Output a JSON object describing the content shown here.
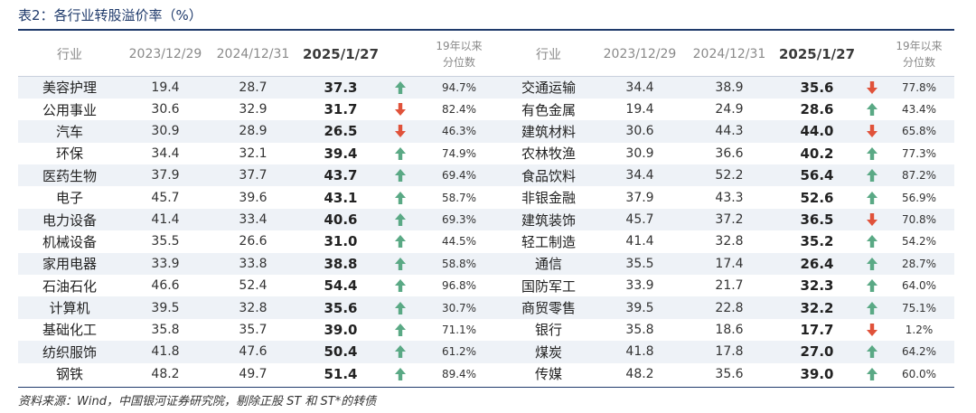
{
  "title": "表2：各行业转股溢价率（%）",
  "headers": {
    "industry": "行业",
    "d1": "2023/12/29",
    "d2": "2024/12/31",
    "d3": "2025/1/27",
    "pct_line1": "19年以来",
    "pct_line2": "分位数"
  },
  "colors": {
    "up": "#5aa985",
    "down": "#e0523a",
    "stripe": "#eef2f7",
    "rule": "#1f3a6b"
  },
  "rows": [
    {
      "left": {
        "name": "美容护理",
        "v1": "19.4",
        "v2": "28.7",
        "v3": "37.3",
        "dir": "up",
        "pct": "94.7%"
      },
      "right": {
        "name": "交通运输",
        "v1": "34.4",
        "v2": "38.9",
        "v3": "35.6",
        "dir": "down",
        "pct": "77.8%"
      }
    },
    {
      "left": {
        "name": "公用事业",
        "v1": "30.6",
        "v2": "32.9",
        "v3": "31.7",
        "dir": "down",
        "pct": "82.4%"
      },
      "right": {
        "name": "有色金属",
        "v1": "19.4",
        "v2": "24.9",
        "v3": "28.6",
        "dir": "up",
        "pct": "43.4%"
      }
    },
    {
      "left": {
        "name": "汽车",
        "v1": "30.9",
        "v2": "28.9",
        "v3": "26.5",
        "dir": "down",
        "pct": "46.3%"
      },
      "right": {
        "name": "建筑材料",
        "v1": "30.6",
        "v2": "44.3",
        "v3": "44.0",
        "dir": "down",
        "pct": "65.8%"
      }
    },
    {
      "left": {
        "name": "环保",
        "v1": "34.4",
        "v2": "32.1",
        "v3": "39.4",
        "dir": "up",
        "pct": "74.9%"
      },
      "right": {
        "name": "农林牧渔",
        "v1": "30.9",
        "v2": "36.6",
        "v3": "40.2",
        "dir": "up",
        "pct": "77.3%"
      }
    },
    {
      "left": {
        "name": "医药生物",
        "v1": "37.9",
        "v2": "37.7",
        "v3": "43.7",
        "dir": "up",
        "pct": "69.4%"
      },
      "right": {
        "name": "食品饮料",
        "v1": "34.4",
        "v2": "52.2",
        "v3": "56.4",
        "dir": "up",
        "pct": "87.2%"
      }
    },
    {
      "left": {
        "name": "电子",
        "v1": "45.7",
        "v2": "39.6",
        "v3": "43.1",
        "dir": "up",
        "pct": "58.7%"
      },
      "right": {
        "name": "非银金融",
        "v1": "37.9",
        "v2": "43.3",
        "v3": "52.6",
        "dir": "up",
        "pct": "56.9%"
      }
    },
    {
      "left": {
        "name": "电力设备",
        "v1": "41.4",
        "v2": "33.4",
        "v3": "40.6",
        "dir": "up",
        "pct": "69.3%"
      },
      "right": {
        "name": "建筑装饰",
        "v1": "45.7",
        "v2": "37.2",
        "v3": "36.5",
        "dir": "down",
        "pct": "70.8%"
      }
    },
    {
      "left": {
        "name": "机械设备",
        "v1": "35.5",
        "v2": "26.6",
        "v3": "31.0",
        "dir": "up",
        "pct": "44.5%"
      },
      "right": {
        "name": "轻工制造",
        "v1": "41.4",
        "v2": "32.8",
        "v3": "35.2",
        "dir": "up",
        "pct": "54.2%"
      }
    },
    {
      "left": {
        "name": "家用电器",
        "v1": "33.9",
        "v2": "33.8",
        "v3": "38.8",
        "dir": "up",
        "pct": "58.8%"
      },
      "right": {
        "name": "通信",
        "v1": "35.5",
        "v2": "17.4",
        "v3": "26.4",
        "dir": "up",
        "pct": "28.7%"
      }
    },
    {
      "left": {
        "name": "石油石化",
        "v1": "46.6",
        "v2": "52.4",
        "v3": "54.4",
        "dir": "up",
        "pct": "96.8%"
      },
      "right": {
        "name": "国防军工",
        "v1": "33.9",
        "v2": "21.7",
        "v3": "32.3",
        "dir": "up",
        "pct": "64.0%"
      }
    },
    {
      "left": {
        "name": "计算机",
        "v1": "39.5",
        "v2": "32.8",
        "v3": "35.6",
        "dir": "up",
        "pct": "30.7%"
      },
      "right": {
        "name": "商贸零售",
        "v1": "39.5",
        "v2": "22.8",
        "v3": "32.2",
        "dir": "up",
        "pct": "75.1%"
      }
    },
    {
      "left": {
        "name": "基础化工",
        "v1": "35.8",
        "v2": "35.7",
        "v3": "39.0",
        "dir": "up",
        "pct": "71.1%"
      },
      "right": {
        "name": "银行",
        "v1": "35.8",
        "v2": "18.6",
        "v3": "17.7",
        "dir": "down",
        "pct": "1.2%"
      }
    },
    {
      "left": {
        "name": "纺织服饰",
        "v1": "41.8",
        "v2": "47.6",
        "v3": "50.4",
        "dir": "up",
        "pct": "61.2%"
      },
      "right": {
        "name": "煤炭",
        "v1": "41.8",
        "v2": "17.8",
        "v3": "27.0",
        "dir": "up",
        "pct": "64.2%"
      }
    },
    {
      "left": {
        "name": "钢铁",
        "v1": "48.2",
        "v2": "49.7",
        "v3": "51.4",
        "dir": "up",
        "pct": "89.4%"
      },
      "right": {
        "name": "传媒",
        "v1": "48.2",
        "v2": "35.6",
        "v3": "39.0",
        "dir": "up",
        "pct": "60.0%"
      }
    }
  ],
  "source": "资料来源：Wind，中国银河证券研究院，剔除正股 ST 和 ST*的转债"
}
